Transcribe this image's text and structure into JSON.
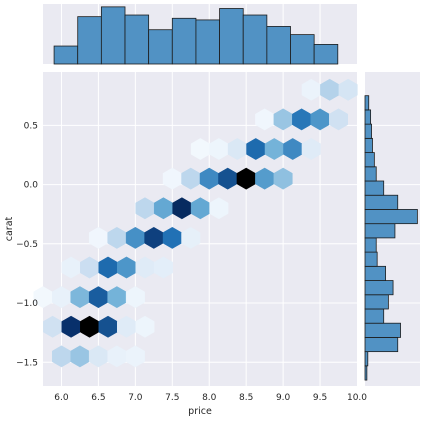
{
  "chart_data": {
    "type": "hexbin-joint",
    "xlabel": "price",
    "ylabel": "carat",
    "xlim": [
      5.75,
      10.0
    ],
    "ylim": [
      -1.7,
      0.95
    ],
    "x_ticks": [
      6.0,
      6.5,
      7.0,
      7.5,
      8.0,
      8.5,
      9.0,
      9.5,
      10.0
    ],
    "x_tick_labels": [
      "6.0",
      "6.5",
      "7.0",
      "7.5",
      "8.0",
      "8.5",
      "9.0",
      "9.5",
      "10.0"
    ],
    "y_ticks": [
      -1.5,
      -1.0,
      -0.5,
      0.0,
      0.5
    ],
    "y_tick_labels": [
      "−1.5",
      "−1.0",
      "−0.5",
      "0.0",
      "0.5"
    ],
    "grid": true,
    "hex_cells": [
      {
        "x": 6.0,
        "y": -1.45,
        "count": 0.22
      },
      {
        "x": 6.25,
        "y": -1.45,
        "count": 0.3
      },
      {
        "x": 6.5,
        "y": -1.45,
        "count": 0.12
      },
      {
        "x": 6.75,
        "y": -1.45,
        "count": 0.06
      },
      {
        "x": 7.0,
        "y": -1.45,
        "count": 0.05
      },
      {
        "x": 5.88,
        "y": -1.2,
        "count": 0.16
      },
      {
        "x": 6.13,
        "y": -1.2,
        "count": 0.8
      },
      {
        "x": 6.38,
        "y": -1.2,
        "count": 1.0
      },
      {
        "x": 6.63,
        "y": -1.2,
        "count": 0.7
      },
      {
        "x": 6.88,
        "y": -1.2,
        "count": 0.1
      },
      {
        "x": 7.13,
        "y": -1.2,
        "count": 0.04
      },
      {
        "x": 5.75,
        "y": -0.95,
        "count": 0.02
      },
      {
        "x": 6.0,
        "y": -0.95,
        "count": 0.06
      },
      {
        "x": 6.25,
        "y": -0.95,
        "count": 0.36
      },
      {
        "x": 6.5,
        "y": -0.95,
        "count": 0.66
      },
      {
        "x": 6.75,
        "y": -0.95,
        "count": 0.38
      },
      {
        "x": 7.0,
        "y": -0.95,
        "count": 0.04
      },
      {
        "x": 6.13,
        "y": -0.7,
        "count": 0.06
      },
      {
        "x": 6.38,
        "y": -0.7,
        "count": 0.18
      },
      {
        "x": 6.63,
        "y": -0.7,
        "count": 0.62
      },
      {
        "x": 6.88,
        "y": -0.7,
        "count": 0.48
      },
      {
        "x": 7.13,
        "y": -0.7,
        "count": 0.1
      },
      {
        "x": 7.38,
        "y": -0.7,
        "count": 0.08
      },
      {
        "x": 6.5,
        "y": -0.45,
        "count": 0.03
      },
      {
        "x": 6.75,
        "y": -0.45,
        "count": 0.22
      },
      {
        "x": 7.0,
        "y": -0.45,
        "count": 0.5
      },
      {
        "x": 7.25,
        "y": -0.45,
        "count": 0.75
      },
      {
        "x": 7.5,
        "y": -0.45,
        "count": 0.6
      },
      {
        "x": 7.75,
        "y": -0.45,
        "count": 0.07
      },
      {
        "x": 7.13,
        "y": -0.2,
        "count": 0.22
      },
      {
        "x": 7.38,
        "y": -0.2,
        "count": 0.42
      },
      {
        "x": 7.63,
        "y": -0.2,
        "count": 0.82
      },
      {
        "x": 7.88,
        "y": -0.2,
        "count": 0.42
      },
      {
        "x": 8.13,
        "y": -0.2,
        "count": 0.04
      },
      {
        "x": 7.5,
        "y": 0.05,
        "count": 0.03
      },
      {
        "x": 7.75,
        "y": 0.05,
        "count": 0.22
      },
      {
        "x": 8.0,
        "y": 0.05,
        "count": 0.52
      },
      {
        "x": 8.25,
        "y": 0.05,
        "count": 0.7
      },
      {
        "x": 8.5,
        "y": 0.05,
        "count": 1.0
      },
      {
        "x": 8.75,
        "y": 0.05,
        "count": 0.46
      },
      {
        "x": 9.0,
        "y": 0.05,
        "count": 0.32
      },
      {
        "x": 7.88,
        "y": 0.3,
        "count": 0.02
      },
      {
        "x": 8.13,
        "y": 0.3,
        "count": 0.04
      },
      {
        "x": 8.38,
        "y": 0.3,
        "count": 0.12
      },
      {
        "x": 8.63,
        "y": 0.3,
        "count": 0.62
      },
      {
        "x": 8.88,
        "y": 0.3,
        "count": 0.38
      },
      {
        "x": 9.13,
        "y": 0.3,
        "count": 0.52
      },
      {
        "x": 9.38,
        "y": 0.3,
        "count": 0.1
      },
      {
        "x": 8.75,
        "y": 0.55,
        "count": 0.03
      },
      {
        "x": 9.0,
        "y": 0.55,
        "count": 0.3
      },
      {
        "x": 9.25,
        "y": 0.55,
        "count": 0.58
      },
      {
        "x": 9.5,
        "y": 0.55,
        "count": 0.48
      },
      {
        "x": 9.75,
        "y": 0.55,
        "count": 0.16
      },
      {
        "x": 9.38,
        "y": 0.8,
        "count": 0.05
      },
      {
        "x": 9.63,
        "y": 0.8,
        "count": 0.24
      },
      {
        "x": 9.88,
        "y": 0.8,
        "count": 0.14
      }
    ],
    "top_histogram": {
      "bin_edges": [
        5.9,
        6.22,
        6.54,
        6.86,
        7.18,
        7.5,
        7.82,
        8.14,
        8.46,
        8.78,
        9.1,
        9.42,
        9.74
      ],
      "counts": [
        11,
        29,
        35,
        30,
        21,
        28,
        27,
        34,
        30,
        23,
        18,
        12
      ]
    },
    "right_histogram": {
      "bin_edges": [
        -1.65,
        -1.53,
        -1.41,
        -1.29,
        -1.17,
        -1.05,
        -0.93,
        -0.81,
        -0.69,
        -0.57,
        -0.45,
        -0.33,
        -0.21,
        -0.09,
        0.03,
        0.15,
        0.27,
        0.39,
        0.51,
        0.63,
        0.75
      ],
      "counts": [
        2,
        3,
        35,
        38,
        20,
        25,
        30,
        22,
        13,
        12,
        32,
        56,
        35,
        20,
        12,
        10,
        8,
        7,
        6,
        4
      ]
    },
    "colors": {
      "background": "#eaeaf2",
      "grid": "#ffffff",
      "bar_fill": "#5192c4",
      "bar_edge": "#1c1c1c",
      "hex_scale": [
        "#f7fbff",
        "#c6dbef",
        "#6baed6",
        "#2171b5",
        "#08306b",
        "#000000"
      ]
    }
  }
}
